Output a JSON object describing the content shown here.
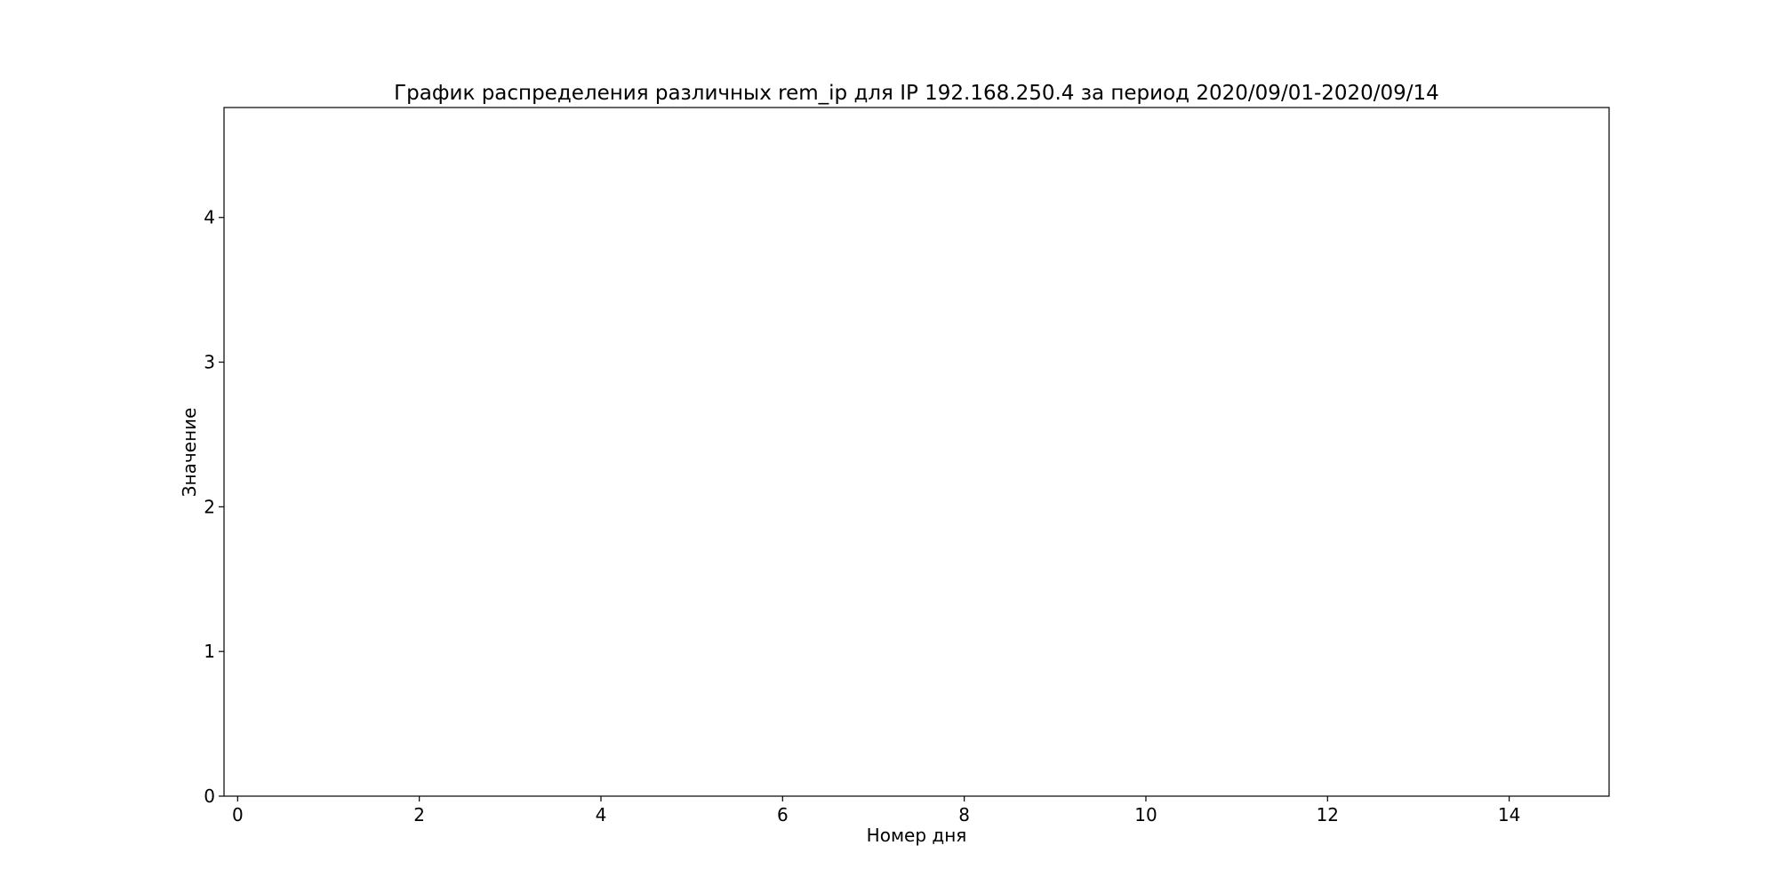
{
  "chart_data": {
    "type": "bar",
    "title": "График распределения различных rem_ip для IP 192.168.250.4 за период 2020/09/01-2020/09/14",
    "xlabel": "Номер дня",
    "ylabel": "Значение",
    "xlim": [
      -0.15,
      15.1
    ],
    "ylim": [
      0,
      4.76
    ],
    "xticks": [
      0,
      2,
      4,
      6,
      8,
      10,
      12,
      14
    ],
    "yticks": [
      0,
      1,
      2,
      3,
      4
    ],
    "grid": false,
    "legend": "none",
    "series": [
      {
        "x": [],
        "values": []
      }
    ]
  }
}
